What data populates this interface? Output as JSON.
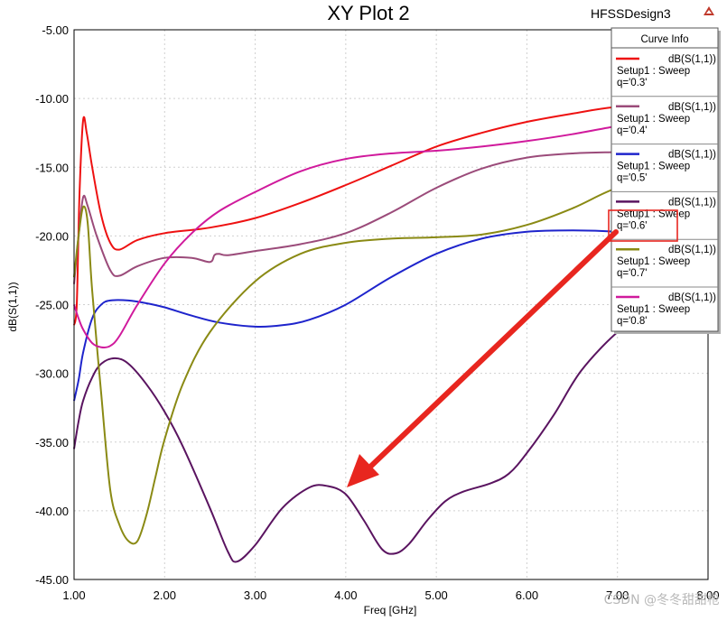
{
  "header": {
    "title": "XY Plot 2",
    "design_name": "HFSSDesign3"
  },
  "legend": {
    "title": "Curve Info",
    "placement": "right"
  },
  "watermark": "CSDN @冬冬甜甜枪",
  "colors": {
    "grid": "#d0d0d0",
    "arrow": "#e8261f",
    "highlight_box": "#e8261f",
    "logo": "#c0392b"
  },
  "chart_data": {
    "type": "line",
    "title": "XY Plot 2",
    "xlabel": "Freq [GHz]",
    "ylabel": "dB(S(1,1))",
    "xlim": [
      1.0,
      8.0
    ],
    "ylim": [
      -45.0,
      -5.0
    ],
    "xticks": [
      "1.00",
      "2.00",
      "3.00",
      "4.00",
      "5.00",
      "6.00",
      "7.00",
      "8.00"
    ],
    "yticks": [
      "-5.00",
      "-10.00",
      "-15.00",
      "-20.00",
      "-25.00",
      "-30.00",
      "-35.00",
      "-40.00",
      "-45.00"
    ],
    "xtick_values": [
      1,
      2,
      3,
      4,
      5,
      6,
      7,
      8
    ],
    "ytick_values": [
      -5,
      -10,
      -15,
      -20,
      -25,
      -30,
      -35,
      -40,
      -45
    ],
    "grid": true,
    "series": [
      {
        "name": "dB(S(1,1))",
        "sub1": "Setup1 : Sweep",
        "sub2": "q='0.3'",
        "color": "#ee1111",
        "x": [
          1.0,
          1.03,
          1.06,
          1.1,
          1.14,
          1.2,
          1.3,
          1.4,
          1.5,
          1.7,
          2.0,
          2.5,
          3.0,
          3.5,
          4.0,
          4.5,
          5.0,
          5.5,
          6.0,
          6.5,
          7.0,
          7.9
        ],
        "y": [
          -26.5,
          -25.0,
          -17.0,
          -11.6,
          -12.5,
          -15.0,
          -18.5,
          -20.5,
          -21.0,
          -20.3,
          -19.8,
          -19.4,
          -18.7,
          -17.6,
          -16.3,
          -14.9,
          -13.5,
          -12.5,
          -11.7,
          -11.1,
          -10.6,
          -10.1
        ]
      },
      {
        "name": "dB(S(1,1))",
        "sub1": "Setup1 : Sweep",
        "sub2": "q='0.4'",
        "color": "#9b4b7a",
        "x": [
          1.0,
          1.05,
          1.1,
          1.15,
          1.25,
          1.4,
          1.5,
          1.7,
          2.0,
          2.3,
          2.5,
          2.55,
          2.6,
          2.7,
          3.0,
          3.5,
          4.0,
          4.5,
          5.0,
          5.5,
          6.0,
          6.5,
          7.0,
          7.9
        ],
        "y": [
          -23.5,
          -20.0,
          -17.2,
          -17.8,
          -20.0,
          -22.5,
          -22.9,
          -22.2,
          -21.6,
          -21.6,
          -21.9,
          -21.4,
          -21.3,
          -21.4,
          -21.1,
          -20.6,
          -19.8,
          -18.3,
          -16.5,
          -15.1,
          -14.3,
          -14.0,
          -13.9,
          -13.8
        ]
      },
      {
        "name": "dB(S(1,1))",
        "sub1": "Setup1 : Sweep",
        "sub2": "q='0.5'",
        "color": "#1e24cc",
        "x": [
          1.0,
          1.05,
          1.1,
          1.2,
          1.3,
          1.4,
          1.6,
          1.8,
          2.0,
          2.3,
          2.6,
          3.0,
          3.3,
          3.6,
          4.0,
          4.5,
          5.0,
          5.5,
          6.0,
          6.5,
          7.0,
          7.3
        ],
        "y": [
          -32.0,
          -30.5,
          -28.5,
          -26.0,
          -25.0,
          -24.7,
          -24.7,
          -24.9,
          -25.2,
          -25.8,
          -26.3,
          -26.6,
          -26.5,
          -26.1,
          -25.0,
          -23.0,
          -21.3,
          -20.2,
          -19.7,
          -19.6,
          -19.7,
          -19.9
        ]
      },
      {
        "name": "dB(S(1,1))",
        "sub1": "Setup1 : Sweep",
        "sub2": "q='0.6'",
        "color": "#5a1460",
        "x": [
          1.0,
          1.05,
          1.1,
          1.2,
          1.3,
          1.45,
          1.6,
          1.8,
          2.0,
          2.2,
          2.5,
          2.7,
          2.8,
          3.0,
          3.3,
          3.6,
          3.8,
          4.0,
          4.2,
          4.4,
          4.55,
          4.7,
          4.9,
          5.1,
          5.3,
          5.6,
          5.8,
          6.0,
          6.3,
          6.6,
          7.0,
          7.3
        ],
        "y": [
          -35.5,
          -33.5,
          -32.0,
          -30.3,
          -29.3,
          -28.9,
          -29.3,
          -30.8,
          -32.8,
          -35.3,
          -39.8,
          -43.0,
          -43.7,
          -42.5,
          -39.8,
          -38.3,
          -38.2,
          -38.8,
          -40.7,
          -42.8,
          -43.1,
          -42.4,
          -40.7,
          -39.3,
          -38.6,
          -38.0,
          -37.3,
          -35.8,
          -33.0,
          -29.8,
          -27.0,
          -25.8
        ]
      },
      {
        "name": "dB(S(1,1))",
        "sub1": "Setup1 : Sweep",
        "sub2": "q='0.7'",
        "color": "#8a8a14",
        "x": [
          1.0,
          1.05,
          1.1,
          1.15,
          1.2,
          1.3,
          1.4,
          1.5,
          1.6,
          1.7,
          1.8,
          1.9,
          2.0,
          2.2,
          2.5,
          3.0,
          3.5,
          4.0,
          4.5,
          5.0,
          5.5,
          6.0,
          6.5,
          7.0,
          7.5
        ],
        "y": [
          -23.0,
          -20.0,
          -17.9,
          -19.0,
          -24.0,
          -31.5,
          -38.5,
          -41.0,
          -42.2,
          -42.2,
          -40.3,
          -37.5,
          -34.8,
          -30.8,
          -27.0,
          -23.3,
          -21.3,
          -20.5,
          -20.2,
          -20.1,
          -19.9,
          -19.2,
          -18.0,
          -16.5,
          -15.9
        ]
      },
      {
        "name": "dB(S(1,1))",
        "sub1": "Setup1 : Sweep",
        "sub2": "q='0.8'",
        "color": "#d01a9c",
        "x": [
          1.0,
          1.05,
          1.1,
          1.2,
          1.3,
          1.4,
          1.5,
          1.7,
          2.0,
          2.3,
          2.6,
          3.0,
          3.5,
          4.0,
          4.5,
          5.0,
          5.5,
          6.0,
          6.5,
          7.0,
          7.5,
          7.9
        ],
        "y": [
          -25.0,
          -26.0,
          -26.8,
          -27.8,
          -28.1,
          -28.0,
          -27.3,
          -25.0,
          -22.0,
          -19.8,
          -18.2,
          -16.8,
          -15.3,
          -14.4,
          -14.0,
          -13.8,
          -13.5,
          -13.1,
          -12.6,
          -12.0,
          -11.5,
          -11.2
        ]
      }
    ]
  }
}
